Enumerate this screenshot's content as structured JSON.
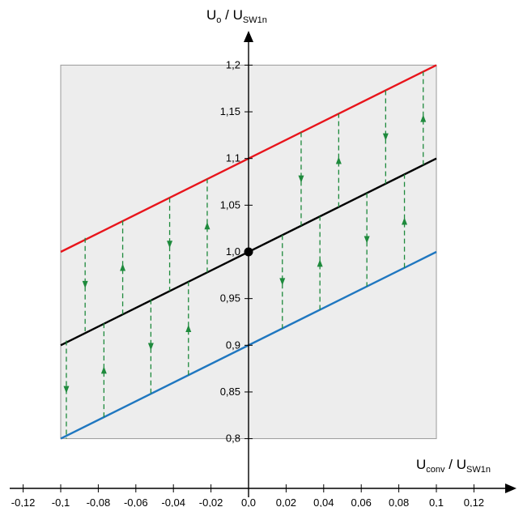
{
  "chart_data": {
    "type": "line",
    "title": "",
    "xlabel": {
      "main": "U",
      "sub": "conv",
      "sep": " / ",
      "main2": "U",
      "sub2": "SW1n"
    },
    "ylabel": {
      "main": "U",
      "sub": "o",
      "sep": " / ",
      "main2": "U",
      "sub2": "SW1n"
    },
    "xlim": [
      -0.1,
      0.1
    ],
    "ylim": [
      0.8,
      1.2
    ],
    "x_ticks": [
      "-0,12",
      "-0,1",
      "-0,08",
      "-0,06",
      "-0,04",
      "-0,02",
      "0,0",
      "0,02",
      "0,04",
      "0,06",
      "0,08",
      "0,1",
      "0,12"
    ],
    "x_tick_values": [
      -0.12,
      -0.1,
      -0.08,
      -0.06,
      -0.04,
      -0.02,
      0.0,
      0.02,
      0.04,
      0.06,
      0.08,
      0.1,
      0.12
    ],
    "y_ticks": [
      "0,8",
      "0,85",
      "0,9",
      "0,95",
      "1,0",
      "1,05",
      "1,1",
      "1,15",
      "1,2"
    ],
    "y_tick_values": [
      0.8,
      0.85,
      0.9,
      0.95,
      1.0,
      1.05,
      1.1,
      1.15,
      1.2
    ],
    "grid": false,
    "shaded_region": {
      "x": [
        -0.1,
        0.1
      ],
      "y": [
        0.8,
        1.2
      ],
      "color": "#ededed"
    },
    "series": [
      {
        "color": "#e8141b",
        "x": [
          -0.1,
          0.1
        ],
        "y": [
          1.0,
          1.2
        ]
      },
      {
        "color": "#000000",
        "x": [
          -0.1,
          0.1
        ],
        "y": [
          0.9,
          1.1
        ]
      },
      {
        "color": "#1f77c0",
        "x": [
          -0.1,
          0.1
        ],
        "y": [
          0.8,
          1.0
        ]
      }
    ],
    "operating_point": {
      "x": 0.0,
      "y": 1.0,
      "color": "#000000"
    },
    "arrow_color": "#1e8a3c",
    "transitions": [
      {
        "x": -0.097,
        "from": 0.905,
        "to": 0.8,
        "dir": "down"
      },
      {
        "x": -0.087,
        "from": 1.015,
        "to": 0.915,
        "dir": "down"
      },
      {
        "x": -0.077,
        "from": 0.823,
        "to": 0.924,
        "dir": "up"
      },
      {
        "x": -0.067,
        "from": 0.933,
        "to": 1.034,
        "dir": "up"
      },
      {
        "x": -0.052,
        "from": 0.949,
        "to": 0.848,
        "dir": "down"
      },
      {
        "x": -0.042,
        "from": 1.058,
        "to": 0.958,
        "dir": "down"
      },
      {
        "x": -0.032,
        "from": 0.868,
        "to": 0.968,
        "dir": "up"
      },
      {
        "x": -0.022,
        "from": 0.978,
        "to": 1.078,
        "dir": "up"
      },
      {
        "x": 0.018,
        "from": 1.018,
        "to": 0.918,
        "dir": "down"
      },
      {
        "x": 0.028,
        "from": 1.128,
        "to": 1.028,
        "dir": "down"
      },
      {
        "x": 0.038,
        "from": 0.938,
        "to": 1.038,
        "dir": "up"
      },
      {
        "x": 0.048,
        "from": 1.048,
        "to": 1.148,
        "dir": "up"
      },
      {
        "x": 0.063,
        "from": 1.063,
        "to": 0.963,
        "dir": "down"
      },
      {
        "x": 0.073,
        "from": 1.173,
        "to": 1.073,
        "dir": "down"
      },
      {
        "x": 0.083,
        "from": 0.983,
        "to": 1.083,
        "dir": "up"
      },
      {
        "x": 0.093,
        "from": 1.093,
        "to": 1.193,
        "dir": "up"
      }
    ]
  }
}
